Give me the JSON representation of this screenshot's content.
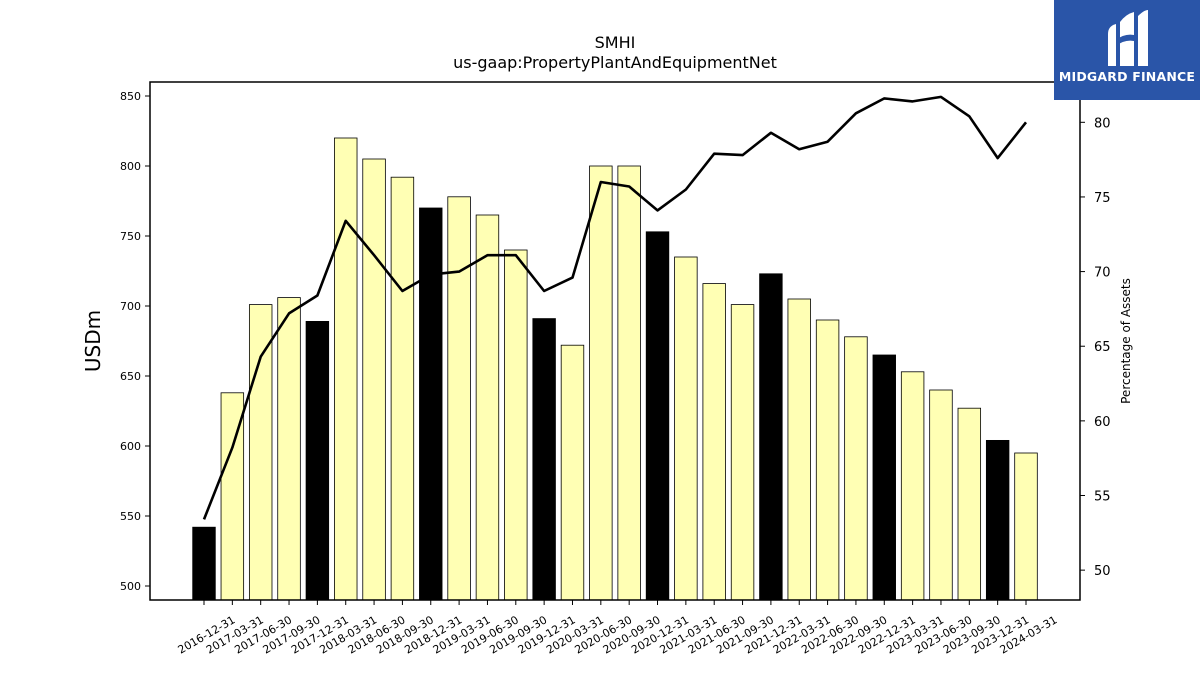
{
  "brand": {
    "name": "MIDGARD FINANCE",
    "logo_icon": "midgard-m-icon",
    "color": "#2a55a8"
  },
  "chart_data": {
    "type": "bar",
    "title": "SMHI",
    "subtitle": "us-gaap:PropertyPlantAndEquipmentNet",
    "ylabel": "USDm",
    "y2label": "Percentage of Assets",
    "ylim": [
      490,
      860
    ],
    "y2lim": [
      48,
      82.7
    ],
    "yticks": [
      500,
      550,
      600,
      650,
      700,
      750,
      800,
      850
    ],
    "y2ticks": [
      50,
      55,
      60,
      65,
      70,
      75,
      80
    ],
    "colors": {
      "year_end": "#000000",
      "quarter": "#ffffb4",
      "line": "#000000"
    },
    "categories": [
      "2016-12-31",
      "2017-03-31",
      "2017-06-30",
      "2017-09-30",
      "2017-12-31",
      "2018-03-31",
      "2018-06-30",
      "2018-09-30",
      "2018-12-31",
      "2019-03-31",
      "2019-06-30",
      "2019-09-30",
      "2019-12-31",
      "2020-03-31",
      "2020-06-30",
      "2020-09-30",
      "2020-12-31",
      "2021-03-31",
      "2021-06-30",
      "2021-09-30",
      "2021-12-31",
      "2022-03-31",
      "2022-06-30",
      "2022-09-30",
      "2022-12-31",
      "2023-03-31",
      "2023-06-30",
      "2023-09-30",
      "2023-12-31",
      "2024-03-31"
    ],
    "series": [
      {
        "type": "bar",
        "values": [
          542,
          638,
          701,
          706,
          689,
          820,
          805,
          792,
          770,
          778,
          765,
          740,
          691,
          672,
          800,
          800,
          753,
          735,
          716,
          701,
          723,
          705,
          690,
          678,
          665,
          653,
          640,
          627,
          604,
          595
        ]
      },
      {
        "type": "line",
        "axis": "right",
        "values": [
          53.4,
          58.2,
          64.3,
          67.2,
          68.4,
          73.4,
          71.1,
          68.7,
          69.8,
          70.0,
          71.1,
          71.1,
          68.7,
          69.6,
          76.0,
          75.7,
          74.1,
          75.5,
          77.9,
          77.8,
          79.3,
          78.2,
          78.7,
          80.6,
          81.6,
          81.4,
          81.7,
          80.4,
          77.6,
          80.0
        ]
      }
    ],
    "grid": false,
    "legend": "none"
  }
}
